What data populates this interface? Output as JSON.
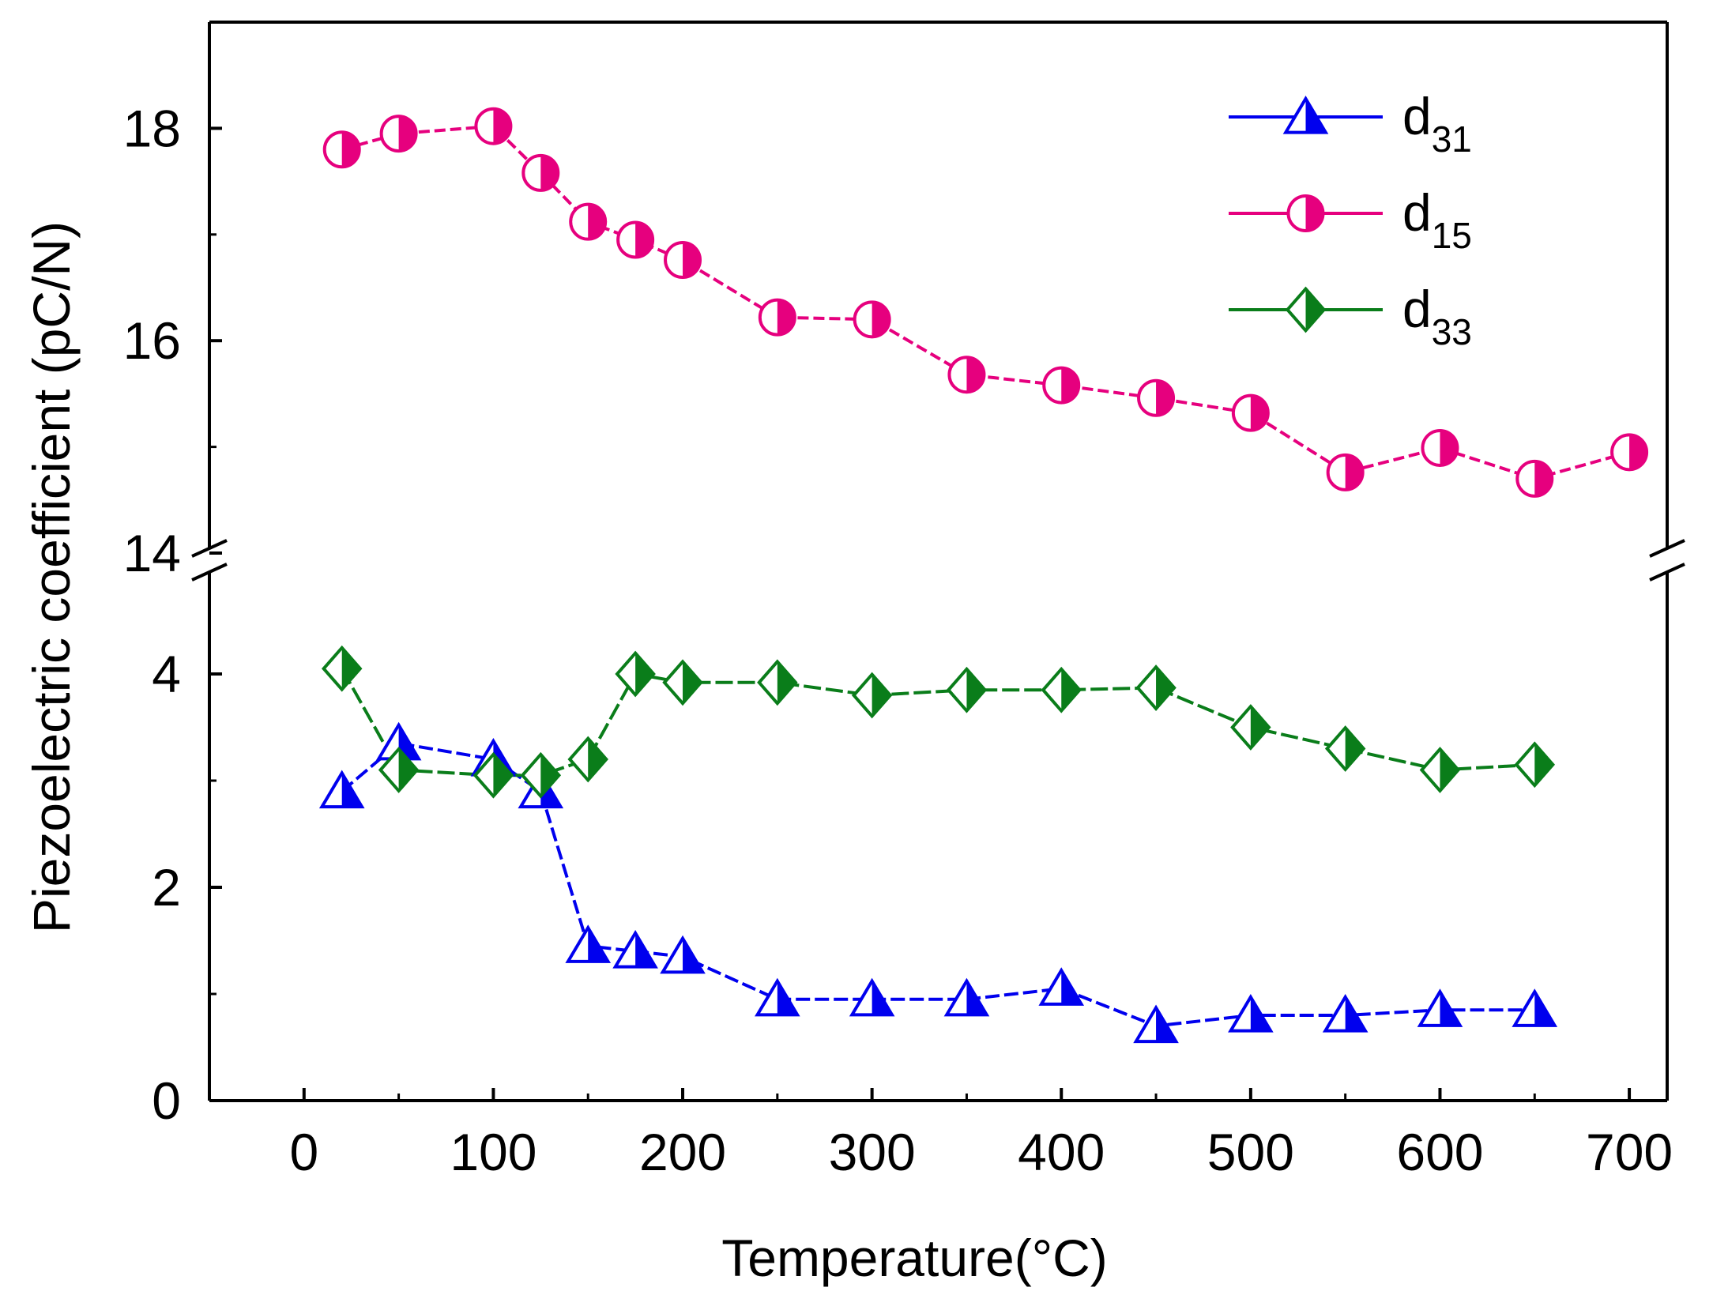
{
  "chart_data": {
    "type": "line",
    "title": "",
    "xlabel": "Temperature(°C)",
    "ylabel": "Piezoelectric coefficient (pC/N)",
    "xlim": [
      -50,
      720
    ],
    "x_ticks": [
      0,
      100,
      200,
      300,
      400,
      500,
      600,
      700
    ],
    "x_tick_labels": [
      "0",
      "100",
      "200",
      "300",
      "400",
      "500",
      "600",
      "700"
    ],
    "y_lower": {
      "range": [
        0,
        5
      ],
      "ticks": [
        0,
        2,
        4
      ],
      "tick_labels": [
        "0",
        "2",
        "4"
      ]
    },
    "y_upper": {
      "range": [
        14,
        19
      ],
      "ticks": [
        14,
        16,
        18
      ],
      "tick_labels": [
        "14",
        "16",
        "18"
      ]
    },
    "axis_break": true,
    "legend_position": "top-right",
    "series": [
      {
        "name": "d31",
        "label_base": "d",
        "label_sub": "31",
        "marker": "triangle-half",
        "color": "#0000ee",
        "panel": "lower",
        "x": [
          20,
          50,
          100,
          125,
          150,
          175,
          200,
          250,
          300,
          350,
          400,
          450,
          500,
          550,
          600,
          650
        ],
        "values": [
          2.9,
          3.35,
          3.2,
          2.9,
          1.45,
          1.4,
          1.35,
          0.95,
          0.95,
          0.95,
          1.05,
          0.7,
          0.8,
          0.8,
          0.85,
          0.85
        ]
      },
      {
        "name": "d15",
        "label_base": "d",
        "label_sub": "15",
        "marker": "circle-half",
        "color": "#e6007e",
        "panel": "upper",
        "x": [
          20,
          50,
          100,
          125,
          150,
          175,
          200,
          250,
          300,
          350,
          400,
          450,
          500,
          550,
          600,
          650,
          700
        ],
        "values": [
          17.8,
          17.95,
          18.02,
          17.58,
          17.12,
          16.95,
          16.76,
          16.22,
          16.2,
          15.68,
          15.58,
          15.46,
          15.32,
          14.76,
          14.99,
          14.7,
          14.95
        ]
      },
      {
        "name": "d33",
        "label_base": "d",
        "label_sub": "33",
        "marker": "diamond-half",
        "color": "#0a7d1a",
        "panel": "lower",
        "x": [
          20,
          50,
          100,
          125,
          150,
          175,
          200,
          250,
          300,
          350,
          400,
          450,
          500,
          550,
          600,
          650
        ],
        "values": [
          4.05,
          3.1,
          3.05,
          3.05,
          3.2,
          4.0,
          3.92,
          3.92,
          3.8,
          3.85,
          3.85,
          3.87,
          3.5,
          3.3,
          3.1,
          3.15
        ]
      }
    ]
  }
}
